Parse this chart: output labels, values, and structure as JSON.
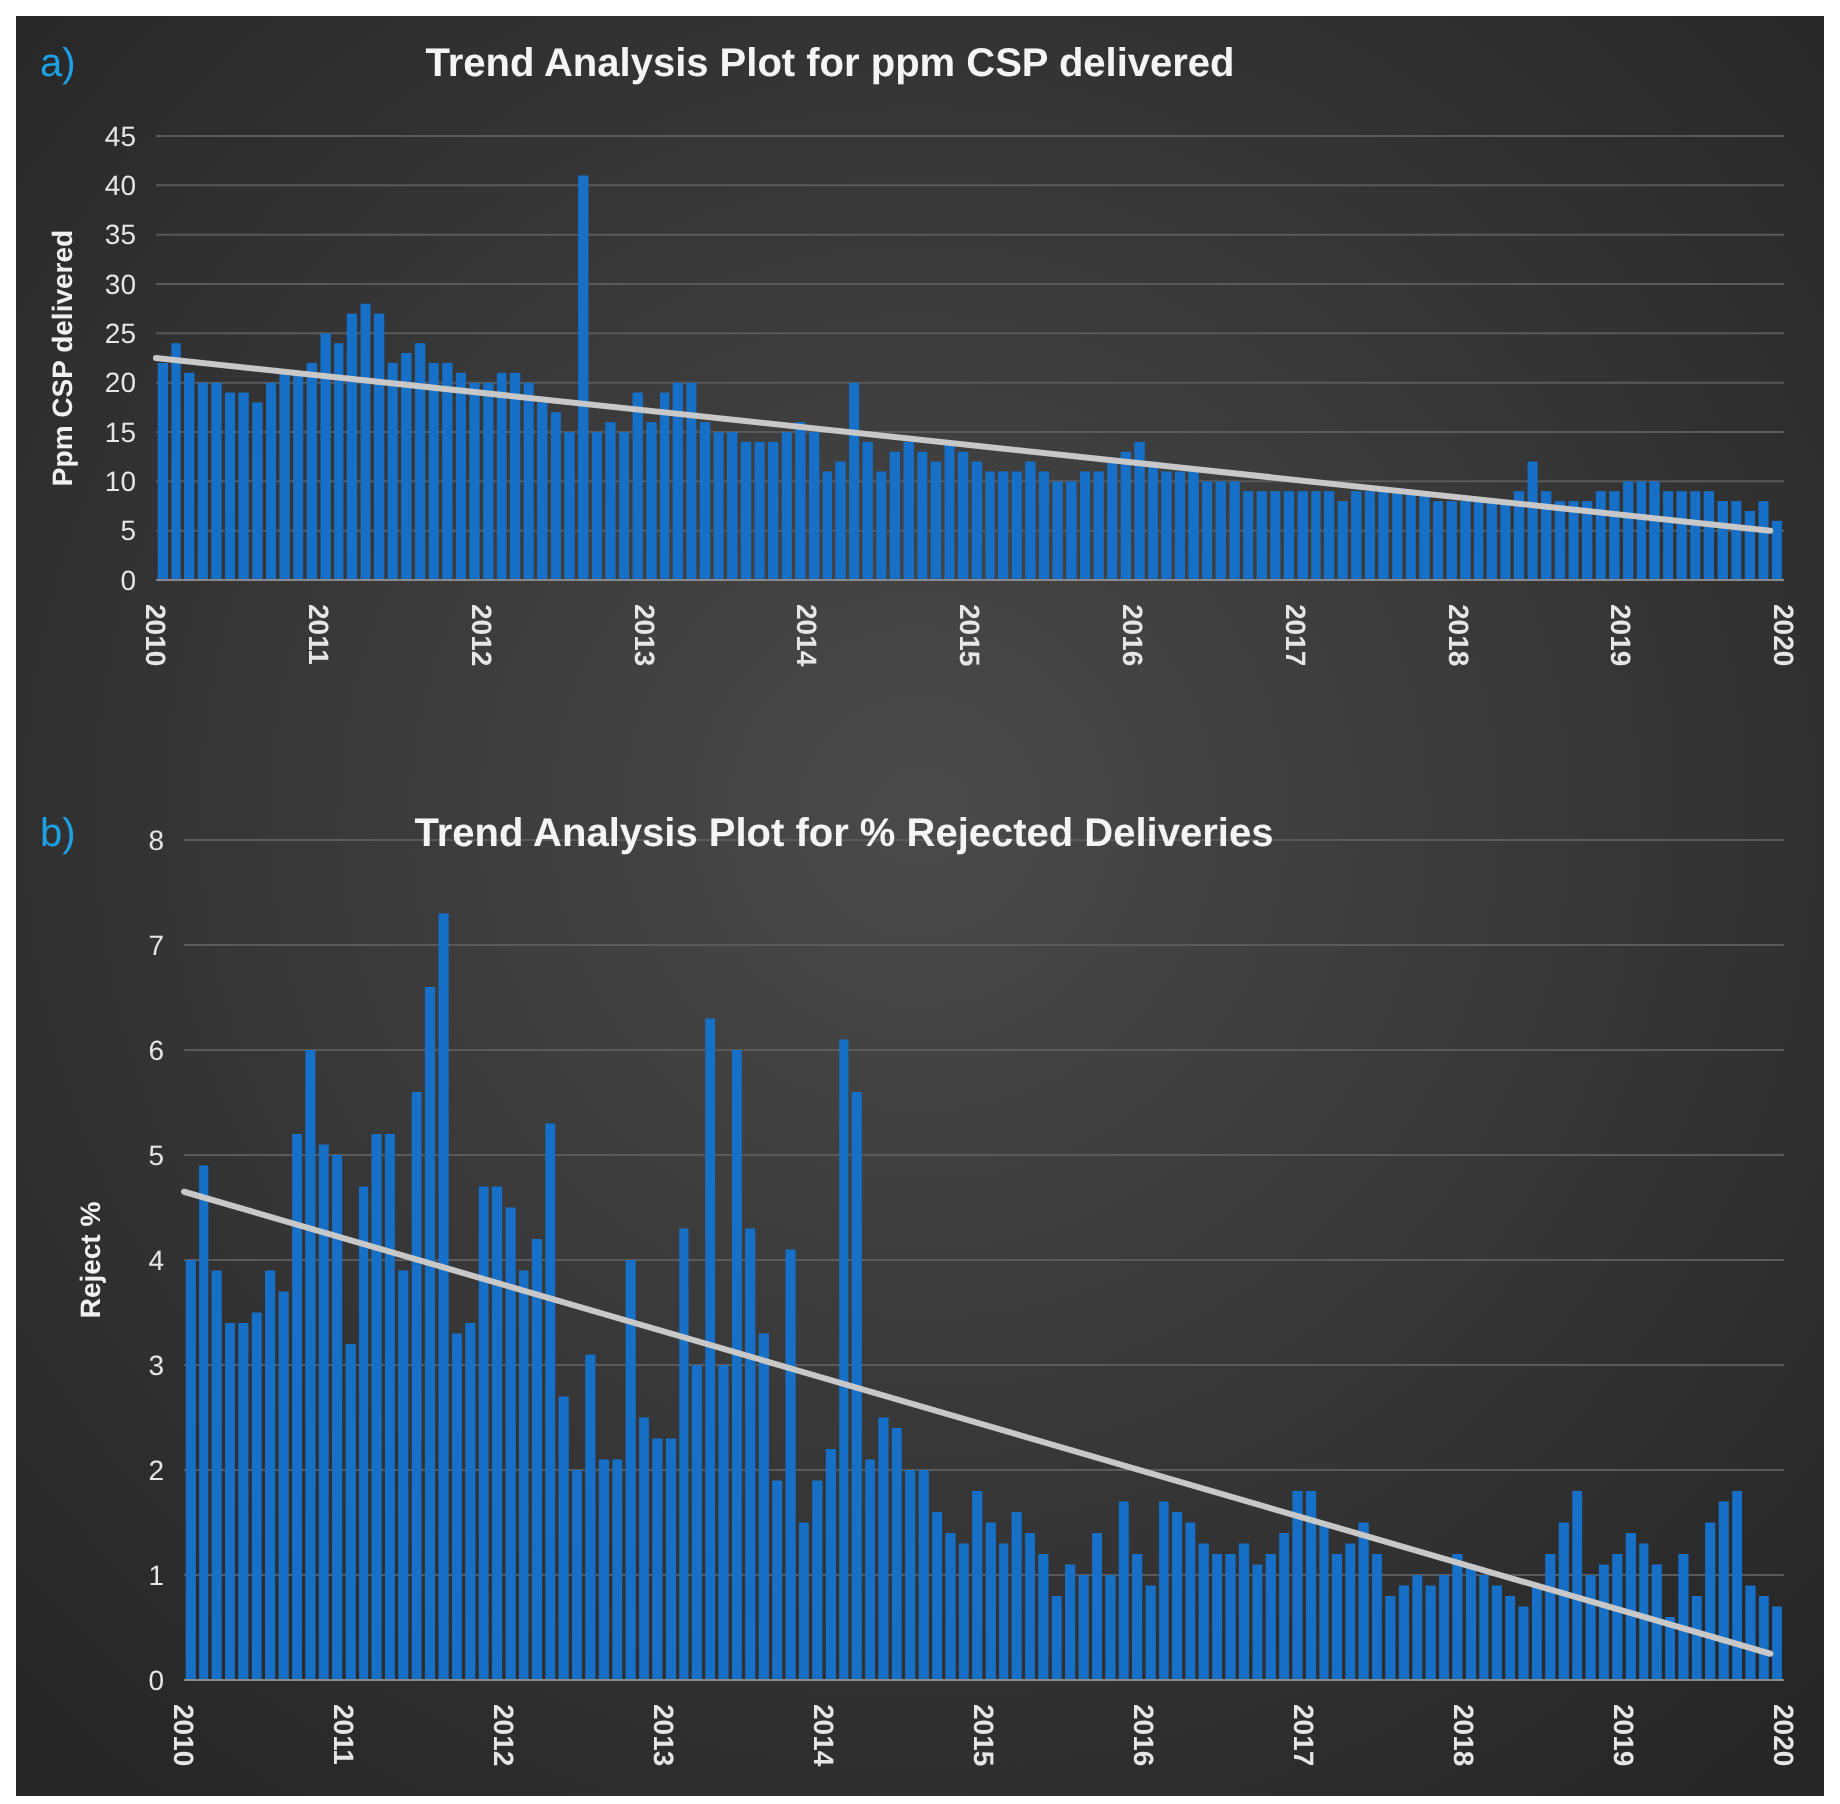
{
  "chart_data": [
    {
      "type": "bar",
      "title": "Trend Analysis Plot for ppm CSP delivered",
      "ylabel": "Ppm CSP delivered",
      "annotations": [
        "a)"
      ],
      "xlim": [
        "2010",
        "2020"
      ],
      "xticks": [
        "2010",
        "2011",
        "2012",
        "2013",
        "2014",
        "2015",
        "2016",
        "2017",
        "2018",
        "2019",
        "2020"
      ],
      "ylim": [
        0,
        45
      ],
      "yticks": [
        0,
        5,
        10,
        15,
        20,
        25,
        30,
        35,
        40,
        45
      ],
      "grid": "y",
      "x": [
        "2010-01",
        "2010-02",
        "2010-03",
        "2010-04",
        "2010-05",
        "2010-06",
        "2010-07",
        "2010-08",
        "2010-09",
        "2010-10",
        "2010-11",
        "2010-12",
        "2011-01",
        "2011-02",
        "2011-03",
        "2011-04",
        "2011-05",
        "2011-06",
        "2011-07",
        "2011-08",
        "2011-09",
        "2011-10",
        "2011-11",
        "2011-12",
        "2012-01",
        "2012-02",
        "2012-03",
        "2012-04",
        "2012-05",
        "2012-06",
        "2012-07",
        "2012-08",
        "2012-09",
        "2012-10",
        "2012-11",
        "2012-12",
        "2013-01",
        "2013-02",
        "2013-03",
        "2013-04",
        "2013-05",
        "2013-06",
        "2013-07",
        "2013-08",
        "2013-09",
        "2013-10",
        "2013-11",
        "2013-12",
        "2014-01",
        "2014-02",
        "2014-03",
        "2014-04",
        "2014-05",
        "2014-06",
        "2014-07",
        "2014-08",
        "2014-09",
        "2014-10",
        "2014-11",
        "2014-12",
        "2015-01",
        "2015-02",
        "2015-03",
        "2015-04",
        "2015-05",
        "2015-06",
        "2015-07",
        "2015-08",
        "2015-09",
        "2015-10",
        "2015-11",
        "2015-12",
        "2016-01",
        "2016-02",
        "2016-03",
        "2016-04",
        "2016-05",
        "2016-06",
        "2016-07",
        "2016-08",
        "2016-09",
        "2016-10",
        "2016-11",
        "2016-12",
        "2017-01",
        "2017-02",
        "2017-03",
        "2017-04",
        "2017-05",
        "2017-06",
        "2017-07",
        "2017-08",
        "2017-09",
        "2017-10",
        "2017-11",
        "2017-12",
        "2018-01",
        "2018-02",
        "2018-03",
        "2018-04",
        "2018-05",
        "2018-06",
        "2018-07",
        "2018-08",
        "2018-09",
        "2018-10",
        "2018-11",
        "2018-12",
        "2019-01",
        "2019-02",
        "2019-03",
        "2019-04",
        "2019-05",
        "2019-06",
        "2019-07",
        "2019-08",
        "2019-09",
        "2019-10",
        "2019-11",
        "2019-12"
      ],
      "series": [
        {
          "color": "#1670c8",
          "values": [
            22,
            24,
            21,
            20,
            20,
            19,
            19,
            18,
            20,
            21,
            21,
            22,
            25,
            24,
            27,
            28,
            27,
            22,
            23,
            24,
            22,
            22,
            21,
            20,
            20,
            21,
            21,
            20,
            18,
            17,
            15,
            41,
            15,
            16,
            15,
            19,
            16,
            19,
            20,
            20,
            16,
            15,
            15,
            14,
            14,
            14,
            15,
            16,
            15,
            11,
            12,
            20,
            14,
            11,
            13,
            14,
            13,
            12,
            14,
            13,
            12,
            11,
            11,
            11,
            12,
            11,
            10,
            10,
            11,
            11,
            12,
            13,
            14,
            12,
            11,
            11,
            11,
            10,
            10,
            10,
            9,
            9,
            9,
            9,
            9,
            9,
            9,
            8,
            9,
            9,
            9,
            9,
            9,
            9,
            8,
            8,
            8,
            8,
            8,
            8,
            9,
            12,
            9,
            8,
            8,
            8,
            9,
            9,
            10,
            10,
            10,
            9,
            9,
            9,
            9,
            8,
            8,
            7,
            8,
            6
          ]
        },
        {
          "type": "line",
          "color": "#c8c8c8",
          "x": [
            "2010-01",
            "2019-12"
          ],
          "values": [
            22.5,
            5
          ]
        }
      ]
    },
    {
      "type": "bar",
      "title": "Trend Analysis Plot for % Rejected Deliveries",
      "ylabel": "Reject %",
      "annotations": [
        "b)"
      ],
      "xlim": [
        "2010",
        "2020"
      ],
      "xticks": [
        "2010",
        "2011",
        "2012",
        "2013",
        "2014",
        "2015",
        "2016",
        "2017",
        "2018",
        "2019",
        "2020"
      ],
      "ylim": [
        0,
        8
      ],
      "yticks": [
        0,
        1,
        2,
        3,
        4,
        5,
        6,
        7,
        8
      ],
      "grid": "y",
      "x": [
        "2010-01",
        "2010-02",
        "2010-03",
        "2010-04",
        "2010-05",
        "2010-06",
        "2010-07",
        "2010-08",
        "2010-09",
        "2010-10",
        "2010-11",
        "2010-12",
        "2011-01",
        "2011-02",
        "2011-03",
        "2011-04",
        "2011-05",
        "2011-06",
        "2011-07",
        "2011-08",
        "2011-09",
        "2011-10",
        "2011-11",
        "2011-12",
        "2012-01",
        "2012-02",
        "2012-03",
        "2012-04",
        "2012-05",
        "2012-06",
        "2012-07",
        "2012-08",
        "2012-09",
        "2012-10",
        "2012-11",
        "2012-12",
        "2013-01",
        "2013-02",
        "2013-03",
        "2013-04",
        "2013-05",
        "2013-06",
        "2013-07",
        "2013-08",
        "2013-09",
        "2013-10",
        "2013-11",
        "2013-12",
        "2014-01",
        "2014-02",
        "2014-03",
        "2014-04",
        "2014-05",
        "2014-06",
        "2014-07",
        "2014-08",
        "2014-09",
        "2014-10",
        "2014-11",
        "2014-12",
        "2015-01",
        "2015-02",
        "2015-03",
        "2015-04",
        "2015-05",
        "2015-06",
        "2015-07",
        "2015-08",
        "2015-09",
        "2015-10",
        "2015-11",
        "2015-12",
        "2016-01",
        "2016-02",
        "2016-03",
        "2016-04",
        "2016-05",
        "2016-06",
        "2016-07",
        "2016-08",
        "2016-09",
        "2016-10",
        "2016-11",
        "2016-12",
        "2017-01",
        "2017-02",
        "2017-03",
        "2017-04",
        "2017-05",
        "2017-06",
        "2017-07",
        "2017-08",
        "2017-09",
        "2017-10",
        "2017-11",
        "2017-12",
        "2018-01",
        "2018-02",
        "2018-03",
        "2018-04",
        "2018-05",
        "2018-06",
        "2018-07",
        "2018-08",
        "2018-09",
        "2018-10",
        "2018-11",
        "2018-12",
        "2019-01",
        "2019-02",
        "2019-03",
        "2019-04",
        "2019-05",
        "2019-06",
        "2019-07",
        "2019-08",
        "2019-09",
        "2019-10",
        "2019-11",
        "2019-12"
      ],
      "series": [
        {
          "color": "#1670c8",
          "values": [
            4.0,
            4.9,
            3.9,
            3.4,
            3.4,
            3.5,
            3.9,
            3.7,
            5.2,
            6.0,
            5.1,
            5.0,
            3.2,
            4.7,
            5.2,
            5.2,
            3.9,
            5.6,
            6.6,
            7.3,
            3.3,
            3.4,
            4.7,
            4.7,
            4.5,
            3.9,
            4.2,
            5.3,
            2.7,
            2.0,
            3.1,
            2.1,
            2.1,
            4.0,
            2.5,
            2.3,
            2.3,
            4.3,
            3.0,
            6.3,
            3.0,
            6.0,
            4.3,
            3.3,
            1.9,
            4.1,
            1.5,
            1.9,
            2.2,
            6.1,
            5.6,
            2.1,
            2.5,
            2.4,
            2.0,
            2.0,
            1.6,
            1.4,
            1.3,
            1.8,
            1.5,
            1.3,
            1.6,
            1.4,
            1.2,
            0.8,
            1.1,
            1.0,
            1.4,
            1.0,
            1.7,
            1.2,
            0.9,
            1.7,
            1.6,
            1.5,
            1.3,
            1.2,
            1.2,
            1.3,
            1.1,
            1.2,
            1.4,
            1.8,
            1.8,
            1.5,
            1.2,
            1.3,
            1.5,
            1.2,
            0.8,
            0.9,
            1.0,
            0.9,
            1.0,
            1.2,
            1.1,
            1.0,
            0.9,
            0.8,
            0.7,
            0.9,
            1.2,
            1.5,
            1.8,
            1.0,
            1.1,
            1.2,
            1.4,
            1.3,
            1.1,
            0.6,
            1.2,
            0.8,
            1.5,
            1.7,
            1.8,
            0.9,
            0.8,
            0.7
          ]
        },
        {
          "type": "line",
          "color": "#c8c8c8",
          "x": [
            "2010-01",
            "2019-12"
          ],
          "values": [
            4.65,
            0.25
          ]
        }
      ]
    }
  ]
}
